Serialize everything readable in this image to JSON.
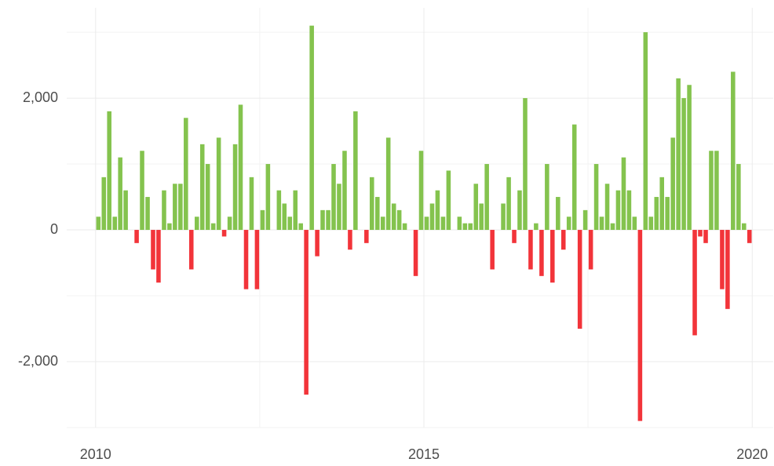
{
  "chart_data": {
    "type": "bar",
    "x": [
      2010.042,
      2010.125,
      2010.208,
      2010.292,
      2010.375,
      2010.458,
      2010.542,
      2010.625,
      2010.708,
      2010.792,
      2010.875,
      2010.958,
      2011.042,
      2011.125,
      2011.208,
      2011.292,
      2011.375,
      2011.458,
      2011.542,
      2011.625,
      2011.708,
      2011.792,
      2011.875,
      2011.958,
      2012.042,
      2012.125,
      2012.208,
      2012.292,
      2012.375,
      2012.458,
      2012.542,
      2012.625,
      2012.708,
      2012.792,
      2012.875,
      2012.958,
      2013.042,
      2013.125,
      2013.208,
      2013.292,
      2013.375,
      2013.458,
      2013.542,
      2013.625,
      2013.708,
      2013.792,
      2013.875,
      2013.958,
      2014.042,
      2014.125,
      2014.208,
      2014.292,
      2014.375,
      2014.458,
      2014.542,
      2014.625,
      2014.708,
      2014.792,
      2014.875,
      2014.958,
      2015.042,
      2015.125,
      2015.208,
      2015.292,
      2015.375,
      2015.458,
      2015.542,
      2015.625,
      2015.708,
      2015.792,
      2015.875,
      2015.958,
      2016.042,
      2016.125,
      2016.208,
      2016.292,
      2016.375,
      2016.458,
      2016.542,
      2016.625,
      2016.708,
      2016.792,
      2016.875,
      2016.958,
      2017.042,
      2017.125,
      2017.208,
      2017.292,
      2017.375,
      2017.458,
      2017.542,
      2017.625,
      2017.708,
      2017.792,
      2017.875,
      2017.958,
      2018.042,
      2018.125,
      2018.208,
      2018.292,
      2018.375,
      2018.458,
      2018.542,
      2018.625,
      2018.708,
      2018.792,
      2018.875,
      2018.958,
      2019.042,
      2019.125,
      2019.208,
      2019.292,
      2019.375,
      2019.458,
      2019.542,
      2019.625,
      2019.708,
      2019.792,
      2019.875,
      2019.958
    ],
    "values": [
      200,
      800,
      1800,
      200,
      1100,
      600,
      0,
      -200,
      1200,
      500,
      -600,
      -800,
      600,
      100,
      700,
      700,
      1700,
      -600,
      200,
      1300,
      1000,
      100,
      1400,
      -100,
      200,
      1300,
      1900,
      -900,
      800,
      -900,
      300,
      1000,
      0,
      600,
      400,
      200,
      600,
      100,
      -2500,
      3100,
      -400,
      300,
      300,
      1000,
      700,
      1200,
      -300,
      1800,
      0,
      -200,
      800,
      500,
      200,
      1400,
      400,
      300,
      100,
      0,
      -700,
      1200,
      200,
      400,
      600,
      200,
      900,
      0,
      200,
      100,
      100,
      700,
      400,
      1000,
      -600,
      0,
      400,
      800,
      -200,
      600,
      2000,
      -600,
      100,
      -700,
      1000,
      -800,
      500,
      -300,
      200,
      1600,
      -1500,
      300,
      -600,
      1000,
      200,
      700,
      100,
      600,
      1100,
      600,
      200,
      -2900,
      3000,
      200,
      500,
      800,
      500,
      1400,
      2300,
      2000,
      2200,
      -1600,
      -100,
      -200,
      1200,
      1200,
      -900,
      -1200,
      2400,
      1000,
      100,
      -200
    ],
    "positive_color": "#84c34e",
    "negative_color": "#f2343a",
    "xlim": [
      2009.56,
      2020.32
    ],
    "xticks": [
      2010,
      2015,
      2020
    ],
    "xminor": [
      2012.5,
      2017.5
    ],
    "ylim": [
      -3000,
      3370
    ],
    "yticks": [
      {
        "value": -2000,
        "label": "-2,000"
      },
      0,
      {
        "value": 2000,
        "label": "2,000"
      }
    ],
    "yminor": [
      -3000,
      -1000,
      1000,
      3000
    ],
    "grid": true
  }
}
